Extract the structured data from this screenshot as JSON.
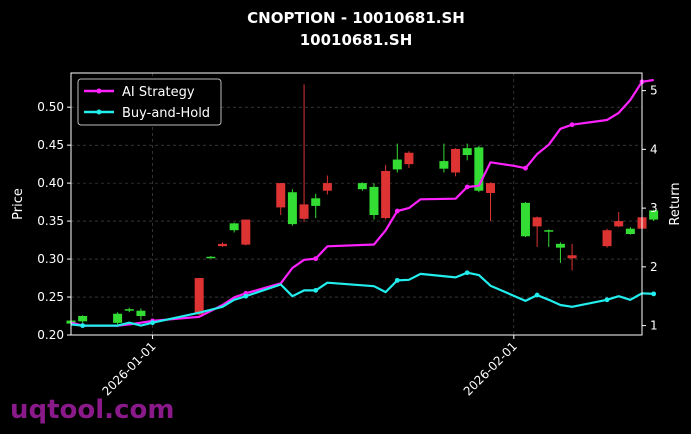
{
  "chart_data": {
    "type": "line",
    "subtype": "candlestick-with-return-lines",
    "title_line1": "CNOPTION - 10010681.SH",
    "title_line2": "10010681.SH",
    "ylabel_left": "Price",
    "ylabel_right": "Return",
    "xlabel": "",
    "x_ticks": [
      "2026-01-01",
      "2026-02-01"
    ],
    "y_ticks_left": [
      "0.20",
      "0.25",
      "0.30",
      "0.35",
      "0.40",
      "0.45",
      "0.50"
    ],
    "y_ticks_right": [
      "1",
      "2",
      "3",
      "4",
      "5"
    ],
    "ylim_left": [
      0.2,
      0.545
    ],
    "ylim_right": [
      0.84,
      5.3
    ],
    "xlim": [
      "2025-12-25",
      "2026-02-12"
    ],
    "grid": true,
    "legend_position": "top-left",
    "colors": {
      "background": "#000000",
      "up_candle": "#33dd33",
      "down_candle": "#dd3333",
      "ai_strategy": "#ff22ff",
      "buy_and_hold": "#22eeee",
      "grid": "#555555",
      "axes": "#ffffff"
    },
    "candles": [
      {
        "date": "2025-12-25",
        "open": 0.215,
        "high": 0.222,
        "low": 0.213,
        "close": 0.219
      },
      {
        "date": "2025-12-26",
        "open": 0.218,
        "high": 0.226,
        "low": 0.216,
        "close": 0.225
      },
      {
        "date": "2025-12-29",
        "open": 0.216,
        "high": 0.23,
        "low": 0.214,
        "close": 0.228
      },
      {
        "date": "2025-12-30",
        "open": 0.232,
        "high": 0.236,
        "low": 0.23,
        "close": 0.234
      },
      {
        "date": "2025-12-31",
        "open": 0.225,
        "high": 0.235,
        "low": 0.22,
        "close": 0.232
      },
      {
        "date": "2026-01-05",
        "open": 0.275,
        "high": 0.275,
        "low": 0.226,
        "close": 0.227
      },
      {
        "date": "2026-01-06",
        "open": 0.303,
        "high": 0.304,
        "low": 0.302,
        "close": 0.303
      },
      {
        "date": "2026-01-07",
        "open": 0.32,
        "high": 0.322,
        "low": 0.316,
        "close": 0.317
      },
      {
        "date": "2026-01-08",
        "open": 0.338,
        "high": 0.348,
        "low": 0.335,
        "close": 0.347
      },
      {
        "date": "2026-01-09",
        "open": 0.352,
        "high": 0.352,
        "low": 0.318,
        "close": 0.319
      },
      {
        "date": "2026-01-12",
        "open": 0.4,
        "high": 0.4,
        "low": 0.358,
        "close": 0.368
      },
      {
        "date": "2026-01-13",
        "open": 0.346,
        "high": 0.392,
        "low": 0.344,
        "close": 0.388
      },
      {
        "date": "2026-01-14",
        "open": 0.372,
        "high": 0.53,
        "low": 0.349,
        "close": 0.353
      },
      {
        "date": "2026-01-15",
        "open": 0.37,
        "high": 0.386,
        "low": 0.354,
        "close": 0.38
      },
      {
        "date": "2026-01-16",
        "open": 0.4,
        "high": 0.41,
        "low": 0.385,
        "close": 0.39
      },
      {
        "date": "2026-01-19",
        "open": 0.392,
        "high": 0.401,
        "low": 0.39,
        "close": 0.4
      },
      {
        "date": "2026-01-20",
        "open": 0.358,
        "high": 0.4,
        "low": 0.352,
        "close": 0.395
      },
      {
        "date": "2026-01-21",
        "open": 0.416,
        "high": 0.424,
        "low": 0.352,
        "close": 0.354
      },
      {
        "date": "2026-01-22",
        "open": 0.418,
        "high": 0.452,
        "low": 0.414,
        "close": 0.431
      },
      {
        "date": "2026-01-23",
        "open": 0.44,
        "high": 0.442,
        "low": 0.42,
        "close": 0.425
      },
      {
        "date": "2026-01-26",
        "open": 0.419,
        "high": 0.452,
        "low": 0.414,
        "close": 0.429
      },
      {
        "date": "2026-01-27",
        "open": 0.445,
        "high": 0.446,
        "low": 0.409,
        "close": 0.414
      },
      {
        "date": "2026-01-28",
        "open": 0.437,
        "high": 0.452,
        "low": 0.43,
        "close": 0.446
      },
      {
        "date": "2026-01-29",
        "open": 0.39,
        "high": 0.449,
        "low": 0.388,
        "close": 0.447
      },
      {
        "date": "2026-01-30",
        "open": 0.4,
        "high": 0.401,
        "low": 0.35,
        "close": 0.387
      },
      {
        "date": "2026-02-02",
        "open": 0.33,
        "high": 0.375,
        "low": 0.329,
        "close": 0.374
      },
      {
        "date": "2026-02-03",
        "open": 0.355,
        "high": 0.356,
        "low": 0.316,
        "close": 0.343
      },
      {
        "date": "2026-02-04",
        "open": 0.337,
        "high": 0.339,
        "low": 0.316,
        "close": 0.338
      },
      {
        "date": "2026-02-05",
        "open": 0.315,
        "high": 0.322,
        "low": 0.295,
        "close": 0.32
      },
      {
        "date": "2026-02-06",
        "open": 0.305,
        "high": 0.32,
        "low": 0.285,
        "close": 0.301
      },
      {
        "date": "2026-02-09",
        "open": 0.338,
        "high": 0.34,
        "low": 0.315,
        "close": 0.317
      },
      {
        "date": "2026-02-10",
        "open": 0.35,
        "high": 0.362,
        "low": 0.342,
        "close": 0.343
      },
      {
        "date": "2026-02-11",
        "open": 0.333,
        "high": 0.342,
        "low": 0.332,
        "close": 0.34
      },
      {
        "date": "2026-02-12",
        "open": 0.355,
        "high": 0.356,
        "low": 0.337,
        "close": 0.34
      },
      {
        "date": "2026-02-13",
        "open": 0.352,
        "high": 0.365,
        "low": 0.35,
        "close": 0.364
      }
    ],
    "series": [
      {
        "name": "AI Strategy",
        "axis": "right",
        "color": "#ff22ff",
        "points": [
          [
            "2025-12-25",
            1.05
          ],
          [
            "2025-12-26",
            1.0
          ],
          [
            "2025-12-29",
            1.0
          ],
          [
            "2025-12-30",
            1.02
          ],
          [
            "2025-12-31",
            1.05
          ],
          [
            "2026-01-01",
            1.08
          ],
          [
            "2026-01-05",
            1.15
          ],
          [
            "2026-01-07",
            1.35
          ],
          [
            "2026-01-08",
            1.48
          ],
          [
            "2026-01-09",
            1.55
          ],
          [
            "2026-01-12",
            1.72
          ],
          [
            "2026-01-13",
            1.98
          ],
          [
            "2026-01-14",
            2.12
          ],
          [
            "2026-01-15",
            2.14
          ],
          [
            "2026-01-16",
            2.35
          ],
          [
            "2026-01-20",
            2.38
          ],
          [
            "2026-01-21",
            2.62
          ],
          [
            "2026-01-22",
            2.95
          ],
          [
            "2026-01-23",
            3.0
          ],
          [
            "2026-01-24",
            3.15
          ],
          [
            "2026-01-27",
            3.16
          ],
          [
            "2026-01-28",
            3.36
          ],
          [
            "2026-01-29",
            3.38
          ],
          [
            "2026-01-30",
            3.78
          ],
          [
            "2026-02-01",
            3.72
          ],
          [
            "2026-02-02",
            3.68
          ],
          [
            "2026-02-03",
            3.92
          ],
          [
            "2026-02-04",
            4.08
          ],
          [
            "2026-02-05",
            4.35
          ],
          [
            "2026-02-06",
            4.42
          ],
          [
            "2026-02-09",
            4.5
          ],
          [
            "2026-02-10",
            4.62
          ],
          [
            "2026-02-11",
            4.84
          ],
          [
            "2026-02-12",
            5.15
          ],
          [
            "2026-02-13",
            5.18
          ]
        ]
      },
      {
        "name": "Buy-and-Hold",
        "axis": "right",
        "color": "#22eeee",
        "points": [
          [
            "2025-12-25",
            1.02
          ],
          [
            "2025-12-26",
            1.0
          ],
          [
            "2025-12-29",
            1.0
          ],
          [
            "2025-12-30",
            1.05
          ],
          [
            "2025-12-31",
            1.0
          ],
          [
            "2026-01-01",
            1.05
          ],
          [
            "2026-01-05",
            1.22
          ],
          [
            "2026-01-07",
            1.32
          ],
          [
            "2026-01-08",
            1.44
          ],
          [
            "2026-01-09",
            1.5
          ],
          [
            "2026-01-12",
            1.7
          ],
          [
            "2026-01-13",
            1.5
          ],
          [
            "2026-01-14",
            1.6
          ],
          [
            "2026-01-15",
            1.6
          ],
          [
            "2026-01-16",
            1.73
          ],
          [
            "2026-01-20",
            1.67
          ],
          [
            "2026-01-21",
            1.57
          ],
          [
            "2026-01-22",
            1.77
          ],
          [
            "2026-01-23",
            1.78
          ],
          [
            "2026-01-24",
            1.88
          ],
          [
            "2026-01-27",
            1.82
          ],
          [
            "2026-01-28",
            1.9
          ],
          [
            "2026-01-29",
            1.86
          ],
          [
            "2026-01-30",
            1.68
          ],
          [
            "2026-02-02",
            1.42
          ],
          [
            "2026-02-03",
            1.52
          ],
          [
            "2026-02-04",
            1.44
          ],
          [
            "2026-02-05",
            1.35
          ],
          [
            "2026-02-06",
            1.32
          ],
          [
            "2026-02-09",
            1.44
          ],
          [
            "2026-02-10",
            1.5
          ],
          [
            "2026-02-11",
            1.44
          ],
          [
            "2026-02-12",
            1.55
          ],
          [
            "2026-02-13",
            1.54
          ]
        ]
      }
    ]
  },
  "watermark": "uqtool.com"
}
